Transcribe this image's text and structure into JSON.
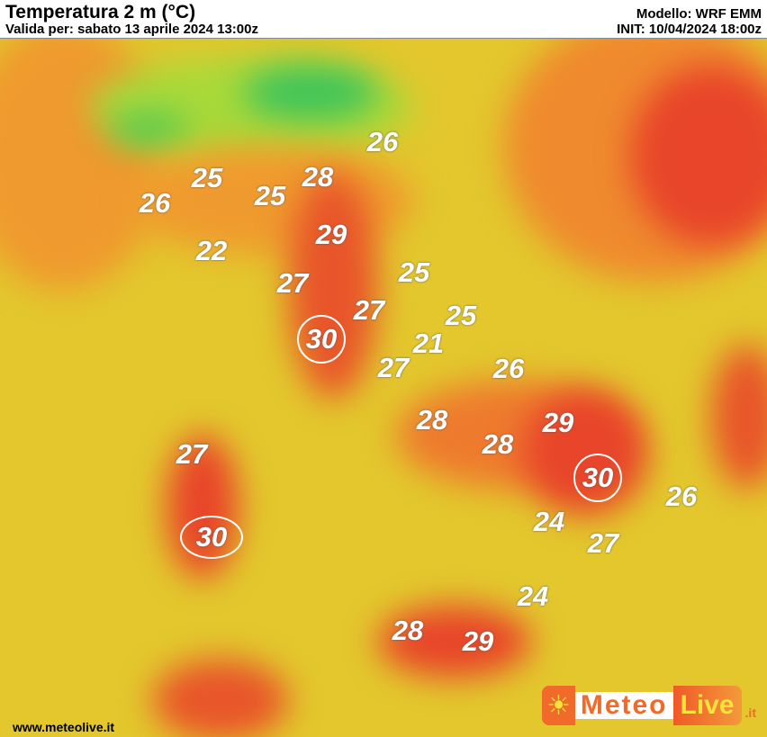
{
  "header": {
    "title": "Temperatura 2 m (°C)",
    "valid": "Valida per: sabato 13 aprile 2024 13:00z",
    "model": "Modello: WRF EMM",
    "init": "INIT: 10/04/2024 18:00z"
  },
  "map": {
    "unit": "°C",
    "colors": {
      "cold": "#3fc45a",
      "cool": "#a9d93a",
      "mild": "#e3c72d",
      "warm": "#ef9a2e",
      "hot": "#e8452a",
      "very_hot": "#d8241e"
    },
    "labels": [
      {
        "value": "26",
        "circled": false
      },
      {
        "value": "25",
        "circled": false
      },
      {
        "value": "28",
        "circled": false
      },
      {
        "value": "25",
        "circled": false
      },
      {
        "value": "26",
        "circled": false
      },
      {
        "value": "29",
        "circled": false
      },
      {
        "value": "22",
        "circled": false
      },
      {
        "value": "25",
        "circled": false
      },
      {
        "value": "27",
        "circled": false
      },
      {
        "value": "27",
        "circled": false
      },
      {
        "value": "25",
        "circled": false
      },
      {
        "value": "30",
        "circled": true
      },
      {
        "value": "21",
        "circled": false
      },
      {
        "value": "27",
        "circled": false
      },
      {
        "value": "26",
        "circled": false
      },
      {
        "value": "29",
        "circled": false
      },
      {
        "value": "28",
        "circled": false
      },
      {
        "value": "28",
        "circled": false
      },
      {
        "value": "27",
        "circled": false
      },
      {
        "value": "30",
        "circled": true
      },
      {
        "value": "26",
        "circled": false
      },
      {
        "value": "24",
        "circled": false
      },
      {
        "value": "30",
        "circled": true
      },
      {
        "value": "27",
        "circled": false
      },
      {
        "value": "24",
        "circled": false
      },
      {
        "value": "28",
        "circled": false
      },
      {
        "value": "29",
        "circled": false
      }
    ]
  },
  "footer": {
    "website": "www.meteolive.it"
  },
  "logo": {
    "part1": "Meteo",
    "part2": "Live",
    "part3": ".it",
    "icon": "sun-icon"
  }
}
